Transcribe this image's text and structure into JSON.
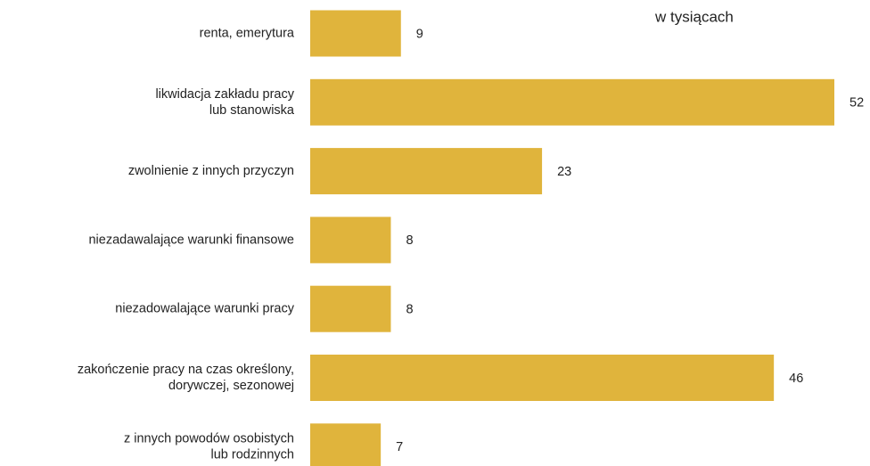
{
  "chart_data": {
    "type": "barh",
    "annotation": "w tysiącach",
    "categories": [
      [
        "renta, emerytura"
      ],
      [
        "likwidacja zakładu pracy",
        "lub stanowiska"
      ],
      [
        "zwolnienie z innych przyczyn"
      ],
      [
        "niezadawalające warunki finansowe"
      ],
      [
        "niezadowalające warunki pracy"
      ],
      [
        "zakończenie pracy na czas określony,",
        "dorywczej, sezonowej"
      ],
      [
        "z innych powodów osobistych",
        "lub rodzinnych"
      ]
    ],
    "values": [
      9,
      52,
      23,
      8,
      8,
      46,
      7
    ],
    "color": "#e0b43c"
  }
}
